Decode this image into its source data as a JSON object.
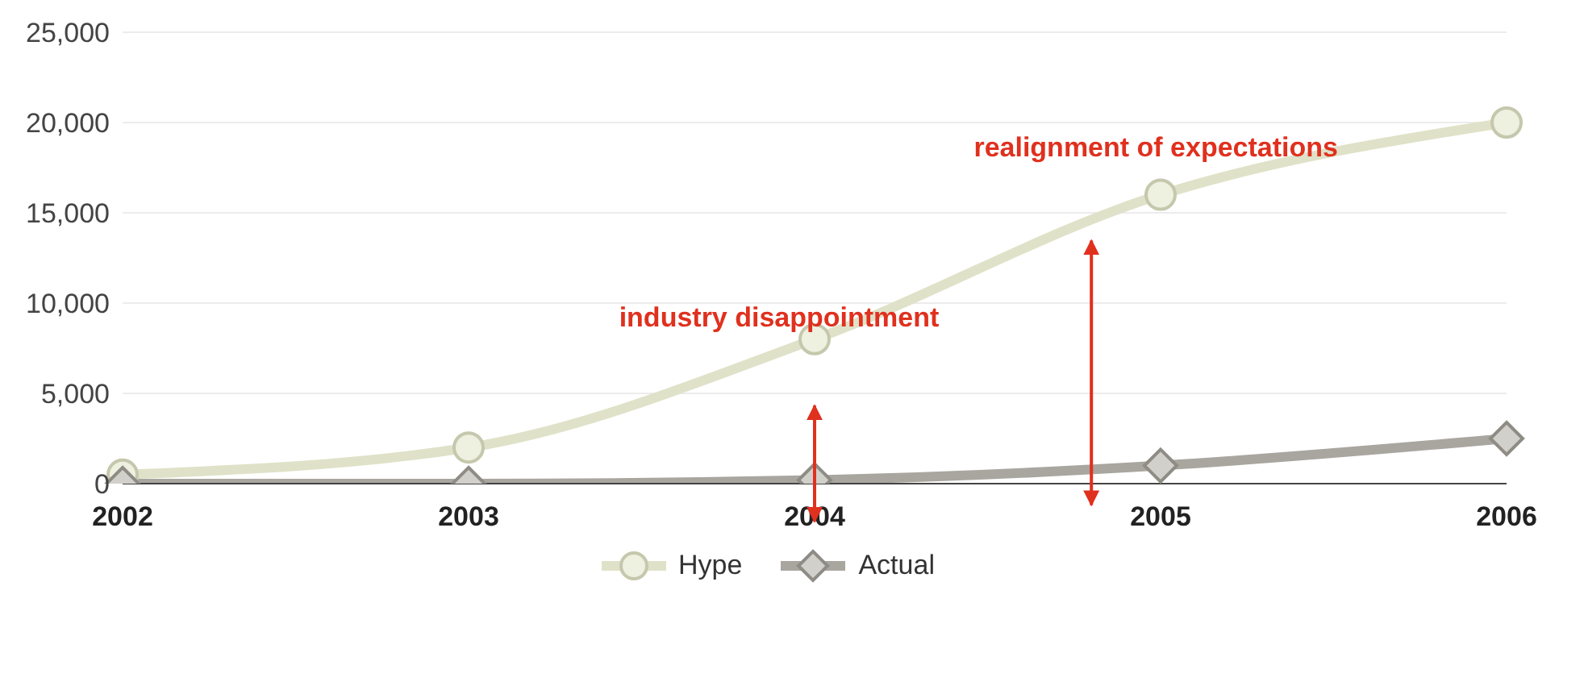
{
  "chart_data": {
    "type": "line",
    "categories": [
      "2002",
      "2003",
      "2004",
      "2005",
      "2006"
    ],
    "series": [
      {
        "name": "Hype",
        "color": "#dfe2c8",
        "marker": "circle",
        "values": [
          500,
          2000,
          8000,
          16000,
          20000
        ]
      },
      {
        "name": "Actual",
        "color": "#a9a6a0",
        "marker": "diamond",
        "values": [
          0,
          0,
          200,
          1000,
          2500
        ]
      }
    ],
    "ylim": [
      0,
      25000
    ],
    "yticks": [
      0,
      {
        "value": 5000,
        "label": "5,000"
      },
      {
        "value": 10000,
        "label": "10,000"
      },
      {
        "value": 15000,
        "label": "15,000"
      },
      {
        "value": 20000,
        "label": "20,000"
      },
      {
        "value": 25000,
        "label": "25,000"
      }
    ],
    "grid": "y",
    "legend": "bottom",
    "annotations": [
      "industry disappointment",
      "realignment of expectations"
    ]
  }
}
